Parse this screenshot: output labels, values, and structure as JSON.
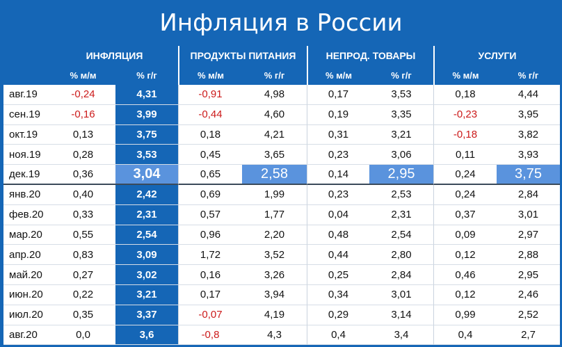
{
  "title": "Инфляция в России",
  "groups": [
    "ИНФЛЯЦИЯ",
    "ПРОДУКТЫ ПИТАНИЯ",
    "НЕПРОД. ТОВАРЫ",
    "УСЛУГИ"
  ],
  "subheaders": [
    "% м/м",
    "% г/г"
  ],
  "rows": [
    {
      "label": "авг.19",
      "v": [
        "-0,24",
        "4,31",
        "-0,91",
        "4,98",
        "0,17",
        "3,53",
        "0,18",
        "4,44"
      ]
    },
    {
      "label": "сен.19",
      "v": [
        "-0,16",
        "3,99",
        "-0,44",
        "4,60",
        "0,19",
        "3,35",
        "-0,23",
        "3,95"
      ]
    },
    {
      "label": "окт.19",
      "v": [
        "0,13",
        "3,75",
        "0,18",
        "4,21",
        "0,31",
        "3,21",
        "-0,18",
        "3,82"
      ]
    },
    {
      "label": "ноя.19",
      "v": [
        "0,28",
        "3,53",
        "0,45",
        "3,65",
        "0,23",
        "3,06",
        "0,11",
        "3,93"
      ]
    },
    {
      "label": "дек.19",
      "v": [
        "0,36",
        "3,04",
        "0,65",
        "2,58",
        "0,14",
        "2,95",
        "0,24",
        "3,75"
      ]
    },
    {
      "label": "янв.20",
      "v": [
        "0,40",
        "2,42",
        "0,69",
        "1,99",
        "0,23",
        "2,53",
        "0,24",
        "2,84"
      ]
    },
    {
      "label": "фев.20",
      "v": [
        "0,33",
        "2,31",
        "0,57",
        "1,77",
        "0,04",
        "2,31",
        "0,37",
        "3,01"
      ]
    },
    {
      "label": "мар.20",
      "v": [
        "0,55",
        "2,54",
        "0,96",
        "2,20",
        "0,48",
        "2,54",
        "0,09",
        "2,97"
      ]
    },
    {
      "label": "апр.20",
      "v": [
        "0,83",
        "3,09",
        "1,72",
        "3,52",
        "0,44",
        "2,80",
        "0,12",
        "2,88"
      ]
    },
    {
      "label": "май.20",
      "v": [
        "0,27",
        "3,02",
        "0,16",
        "3,26",
        "0,25",
        "2,84",
        "0,46",
        "2,95"
      ]
    },
    {
      "label": "июн.20",
      "v": [
        "0,22",
        "3,21",
        "0,17",
        "3,94",
        "0,34",
        "3,01",
        "0,12",
        "2,46"
      ]
    },
    {
      "label": "июл.20",
      "v": [
        "0,35",
        "3,37",
        "-0,07",
        "4,19",
        "0,29",
        "3,14",
        "0,99",
        "2,52"
      ]
    },
    {
      "label": "авг.20",
      "v": [
        "0,0",
        "3,6",
        "-0,8",
        "4,3",
        "0,4",
        "3,4",
        "0,4",
        "2,7"
      ]
    }
  ],
  "colors": {
    "header_bg": "#1566b6",
    "highlight_bg": "#5a93dd",
    "negative": "#cc1a1a"
  }
}
